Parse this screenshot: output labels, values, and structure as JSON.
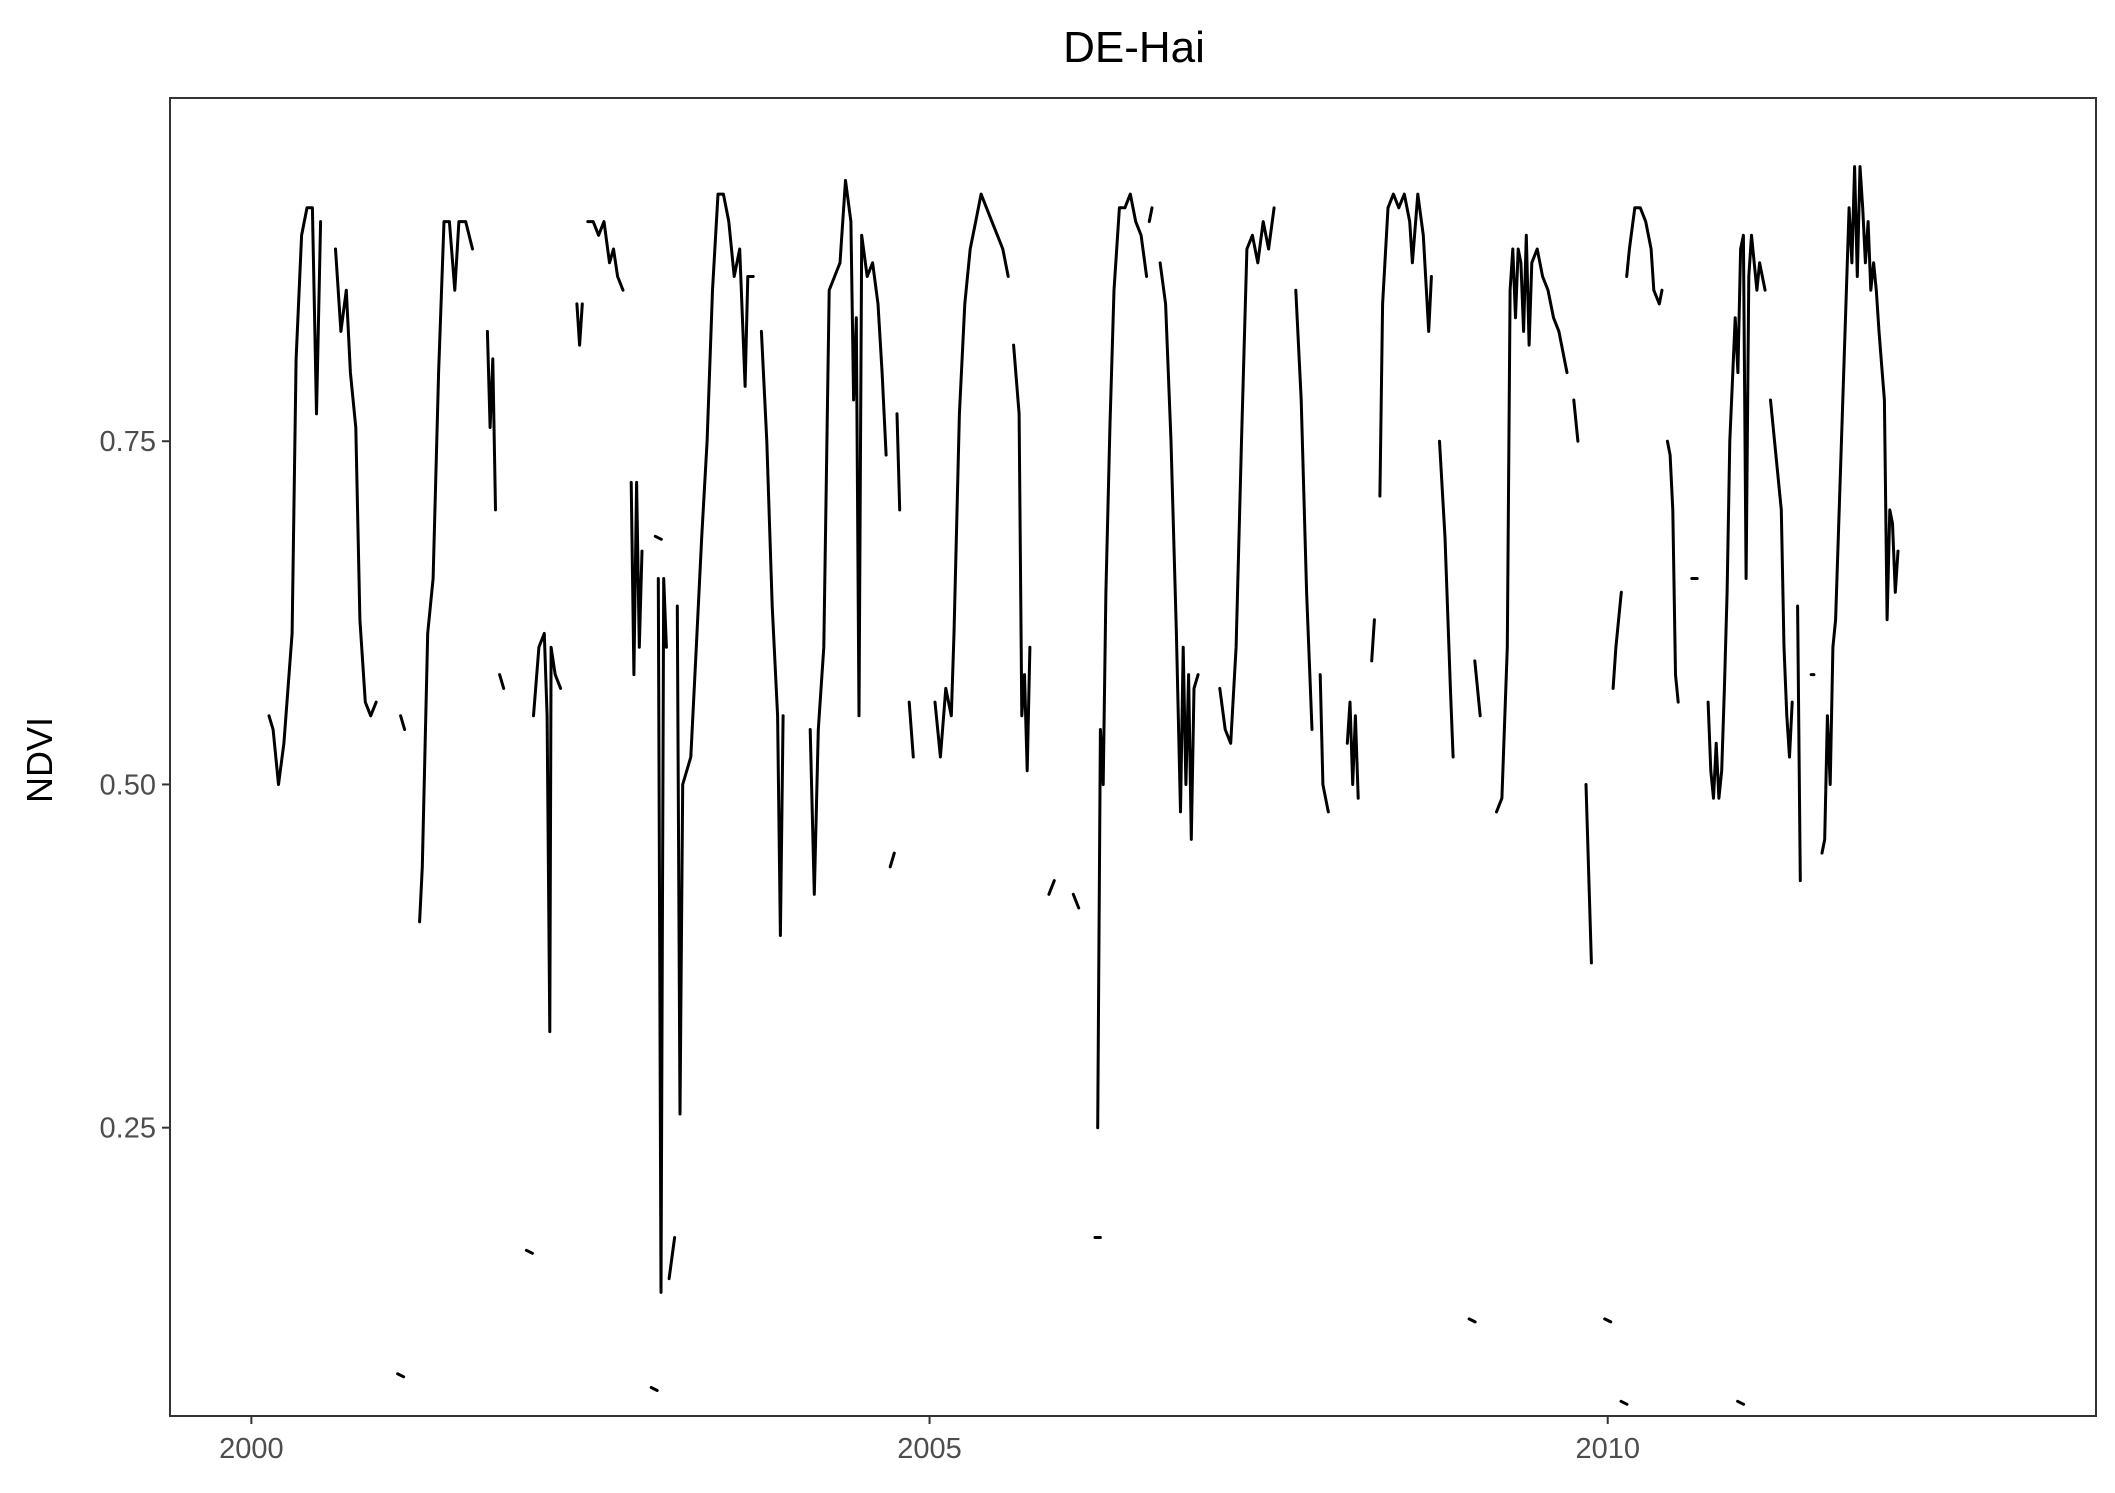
{
  "chart_data": {
    "type": "line",
    "title": "DE-Hai",
    "xlabel": "",
    "ylabel": "NDVI",
    "xlim": [
      1999.4,
      2013.6
    ],
    "ylim": [
      0.04,
      1.0
    ],
    "x_ticks": [
      2000,
      2005,
      2010
    ],
    "x_tick_labels": [
      "2000",
      "2005",
      "2010"
    ],
    "y_ticks": [
      0.25,
      0.5,
      0.75
    ],
    "y_tick_labels": [
      "0.25",
      "0.50",
      "0.75"
    ],
    "grid": false,
    "legend": "none",
    "line_color": "#000000",
    "segments": [
      [
        [
          2000.13,
          0.55
        ],
        [
          2000.16,
          0.54
        ],
        [
          2000.2,
          0.5
        ],
        [
          2000.24,
          0.53
        ],
        [
          2000.3,
          0.61
        ],
        [
          2000.33,
          0.81
        ],
        [
          2000.37,
          0.9
        ],
        [
          2000.41,
          0.92
        ],
        [
          2000.45,
          0.92
        ],
        [
          2000.48,
          0.77
        ],
        [
          2000.51,
          0.91
        ]
      ],
      [
        [
          2000.62,
          0.89
        ],
        [
          2000.66,
          0.83
        ],
        [
          2000.7,
          0.86
        ],
        [
          2000.73,
          0.8
        ],
        [
          2000.77,
          0.76
        ],
        [
          2000.8,
          0.62
        ],
        [
          2000.84,
          0.56
        ],
        [
          2000.88,
          0.55
        ],
        [
          2000.92,
          0.56
        ]
      ],
      [
        [
          2001.1,
          0.55
        ],
        [
          2001.13,
          0.54
        ]
      ],
      [
        [
          2001.24,
          0.4
        ],
        [
          2001.26,
          0.44
        ],
        [
          2001.3,
          0.61
        ],
        [
          2001.34,
          0.65
        ],
        [
          2001.38,
          0.8
        ],
        [
          2001.42,
          0.91
        ],
        [
          2001.46,
          0.91
        ],
        [
          2001.5,
          0.86
        ],
        [
          2001.53,
          0.91
        ],
        [
          2001.58,
          0.91
        ],
        [
          2001.63,
          0.89
        ]
      ],
      [
        [
          2001.74,
          0.83
        ],
        [
          2001.76,
          0.76
        ],
        [
          2001.78,
          0.81
        ],
        [
          2001.8,
          0.7
        ]
      ],
      [
        [
          2001.83,
          0.58
        ],
        [
          2001.86,
          0.57
        ]
      ],
      [
        [
          2002.08,
          0.55
        ],
        [
          2002.12,
          0.6
        ],
        [
          2002.16,
          0.61
        ],
        [
          2002.18,
          0.55
        ],
        [
          2002.2,
          0.32
        ],
        [
          2002.21,
          0.6
        ],
        [
          2002.24,
          0.58
        ],
        [
          2002.28,
          0.57
        ]
      ],
      [
        [
          2002.4,
          0.85
        ],
        [
          2002.42,
          0.82
        ],
        [
          2002.44,
          0.85
        ]
      ],
      [
        [
          2002.48,
          0.91
        ],
        [
          2002.52,
          0.91
        ],
        [
          2002.56,
          0.9
        ],
        [
          2002.6,
          0.91
        ],
        [
          2002.64,
          0.88
        ],
        [
          2002.67,
          0.89
        ],
        [
          2002.7,
          0.87
        ],
        [
          2002.74,
          0.86
        ]
      ],
      [
        [
          2002.8,
          0.72
        ],
        [
          2002.82,
          0.58
        ],
        [
          2002.84,
          0.72
        ],
        [
          2002.86,
          0.6
        ],
        [
          2002.88,
          0.67
        ]
      ],
      [
        [
          2003.0,
          0.65
        ],
        [
          2003.02,
          0.13
        ],
        [
          2003.04,
          0.65
        ],
        [
          2003.06,
          0.6
        ]
      ],
      [
        [
          2003.08,
          0.14
        ],
        [
          2003.12,
          0.17
        ]
      ],
      [
        [
          2003.14,
          0.63
        ],
        [
          2003.16,
          0.26
        ],
        [
          2003.18,
          0.5
        ],
        [
          2003.24,
          0.52
        ],
        [
          2003.28,
          0.6
        ],
        [
          2003.32,
          0.68
        ],
        [
          2003.36,
          0.75
        ],
        [
          2003.4,
          0.86
        ],
        [
          2003.44,
          0.93
        ],
        [
          2003.48,
          0.93
        ],
        [
          2003.52,
          0.91
        ],
        [
          2003.56,
          0.87
        ],
        [
          2003.6,
          0.89
        ],
        [
          2003.64,
          0.79
        ],
        [
          2003.66,
          0.87
        ],
        [
          2003.7,
          0.87
        ]
      ],
      [
        [
          2003.76,
          0.83
        ],
        [
          2003.8,
          0.75
        ],
        [
          2003.84,
          0.63
        ],
        [
          2003.88,
          0.55
        ],
        [
          2003.9,
          0.39
        ],
        [
          2003.92,
          0.55
        ]
      ],
      [
        [
          2004.12,
          0.54
        ],
        [
          2004.15,
          0.42
        ],
        [
          2004.18,
          0.54
        ],
        [
          2004.22,
          0.6
        ],
        [
          2004.26,
          0.86
        ],
        [
          2004.3,
          0.87
        ],
        [
          2004.34,
          0.88
        ],
        [
          2004.38,
          0.94
        ],
        [
          2004.42,
          0.91
        ],
        [
          2004.44,
          0.78
        ],
        [
          2004.46,
          0.84
        ],
        [
          2004.48,
          0.55
        ],
        [
          2004.5,
          0.9
        ],
        [
          2004.54,
          0.87
        ],
        [
          2004.58,
          0.88
        ],
        [
          2004.62,
          0.85
        ],
        [
          2004.65,
          0.8
        ],
        [
          2004.68,
          0.74
        ]
      ],
      [
        [
          2004.71,
          0.44
        ],
        [
          2004.74,
          0.45
        ]
      ],
      [
        [
          2004.76,
          0.77
        ],
        [
          2004.78,
          0.7
        ]
      ],
      [
        [
          2004.85,
          0.56
        ],
        [
          2004.88,
          0.52
        ]
      ],
      [
        [
          2005.04,
          0.56
        ],
        [
          2005.08,
          0.52
        ],
        [
          2005.12,
          0.57
        ],
        [
          2005.16,
          0.55
        ],
        [
          2005.18,
          0.61
        ],
        [
          2005.22,
          0.77
        ],
        [
          2005.26,
          0.85
        ],
        [
          2005.3,
          0.89
        ],
        [
          2005.34,
          0.91
        ],
        [
          2005.38,
          0.93
        ],
        [
          2005.42,
          0.92
        ],
        [
          2005.46,
          0.91
        ],
        [
          2005.5,
          0.9
        ],
        [
          2005.54,
          0.89
        ],
        [
          2005.58,
          0.87
        ]
      ],
      [
        [
          2005.62,
          0.82
        ],
        [
          2005.66,
          0.77
        ],
        [
          2005.68,
          0.55
        ],
        [
          2005.7,
          0.58
        ],
        [
          2005.72,
          0.51
        ],
        [
          2005.74,
          0.6
        ]
      ],
      [
        [
          2005.88,
          0.42
        ],
        [
          2005.92,
          0.43
        ]
      ],
      [
        [
          2006.06,
          0.42
        ],
        [
          2006.1,
          0.41
        ]
      ],
      [
        [
          2006.22,
          0.17
        ],
        [
          2006.26,
          0.17
        ]
      ],
      [
        [
          2006.24,
          0.25
        ],
        [
          2006.26,
          0.54
        ],
        [
          2006.28,
          0.5
        ],
        [
          2006.3,
          0.64
        ],
        [
          2006.33,
          0.76
        ],
        [
          2006.36,
          0.86
        ],
        [
          2006.4,
          0.92
        ],
        [
          2006.44,
          0.92
        ],
        [
          2006.48,
          0.93
        ],
        [
          2006.52,
          0.91
        ],
        [
          2006.56,
          0.9
        ],
        [
          2006.6,
          0.87
        ]
      ],
      [
        [
          2006.62,
          0.91
        ],
        [
          2006.64,
          0.92
        ]
      ],
      [
        [
          2006.7,
          0.88
        ],
        [
          2006.74,
          0.85
        ],
        [
          2006.78,
          0.75
        ],
        [
          2006.82,
          0.61
        ],
        [
          2006.85,
          0.48
        ],
        [
          2006.87,
          0.6
        ],
        [
          2006.89,
          0.5
        ],
        [
          2006.91,
          0.58
        ],
        [
          2006.93,
          0.46
        ],
        [
          2006.95,
          0.57
        ],
        [
          2006.98,
          0.58
        ]
      ],
      [
        [
          2007.14,
          0.57
        ],
        [
          2007.18,
          0.54
        ],
        [
          2007.22,
          0.53
        ],
        [
          2007.26,
          0.6
        ],
        [
          2007.3,
          0.75
        ],
        [
          2007.34,
          0.89
        ],
        [
          2007.38,
          0.9
        ],
        [
          2007.42,
          0.88
        ],
        [
          2007.46,
          0.91
        ],
        [
          2007.5,
          0.89
        ],
        [
          2007.54,
          0.92
        ]
      ],
      [
        [
          2007.7,
          0.86
        ],
        [
          2007.74,
          0.78
        ],
        [
          2007.78,
          0.64
        ],
        [
          2007.82,
          0.54
        ]
      ],
      [
        [
          2007.88,
          0.58
        ],
        [
          2007.9,
          0.5
        ],
        [
          2007.94,
          0.48
        ]
      ],
      [
        [
          2008.08,
          0.53
        ],
        [
          2008.1,
          0.56
        ],
        [
          2008.12,
          0.5
        ],
        [
          2008.14,
          0.55
        ],
        [
          2008.16,
          0.49
        ]
      ],
      [
        [
          2008.26,
          0.59
        ],
        [
          2008.28,
          0.62
        ]
      ],
      [
        [
          2008.32,
          0.71
        ],
        [
          2008.34,
          0.85
        ],
        [
          2008.38,
          0.92
        ],
        [
          2008.42,
          0.93
        ],
        [
          2008.46,
          0.92
        ],
        [
          2008.5,
          0.93
        ],
        [
          2008.54,
          0.91
        ],
        [
          2008.56,
          0.88
        ],
        [
          2008.6,
          0.93
        ],
        [
          2008.64,
          0.9
        ],
        [
          2008.68,
          0.83
        ],
        [
          2008.7,
          0.87
        ]
      ],
      [
        [
          2008.76,
          0.75
        ],
        [
          2008.8,
          0.68
        ],
        [
          2008.84,
          0.57
        ],
        [
          2008.86,
          0.52
        ]
      ],
      [
        [
          2009.02,
          0.59
        ],
        [
          2009.06,
          0.55
        ]
      ],
      [
        [
          2009.18,
          0.48
        ],
        [
          2009.22,
          0.49
        ],
        [
          2009.26,
          0.6
        ],
        [
          2009.28,
          0.86
        ],
        [
          2009.3,
          0.89
        ],
        [
          2009.32,
          0.84
        ],
        [
          2009.34,
          0.89
        ],
        [
          2009.36,
          0.88
        ],
        [
          2009.38,
          0.83
        ],
        [
          2009.4,
          0.9
        ],
        [
          2009.42,
          0.82
        ],
        [
          2009.44,
          0.88
        ],
        [
          2009.48,
          0.89
        ],
        [
          2009.52,
          0.87
        ],
        [
          2009.56,
          0.86
        ],
        [
          2009.6,
          0.84
        ],
        [
          2009.64,
          0.83
        ],
        [
          2009.7,
          0.8
        ]
      ],
      [
        [
          2009.75,
          0.78
        ],
        [
          2009.78,
          0.75
        ]
      ],
      [
        [
          2009.84,
          0.5
        ],
        [
          2009.88,
          0.37
        ]
      ],
      [
        [
          2010.04,
          0.57
        ],
        [
          2010.06,
          0.6
        ],
        [
          2010.08,
          0.62
        ],
        [
          2010.1,
          0.64
        ]
      ],
      [
        [
          2010.14,
          0.87
        ],
        [
          2010.16,
          0.89
        ],
        [
          2010.2,
          0.92
        ],
        [
          2010.24,
          0.92
        ],
        [
          2010.28,
          0.91
        ],
        [
          2010.32,
          0.89
        ],
        [
          2010.34,
          0.86
        ],
        [
          2010.38,
          0.85
        ],
        [
          2010.4,
          0.86
        ]
      ],
      [
        [
          2010.44,
          0.75
        ],
        [
          2010.46,
          0.74
        ],
        [
          2010.48,
          0.7
        ],
        [
          2010.5,
          0.58
        ],
        [
          2010.52,
          0.56
        ]
      ],
      [
        [
          2010.62,
          0.65
        ],
        [
          2010.66,
          0.65
        ]
      ],
      [
        [
          2010.74,
          0.56
        ],
        [
          2010.76,
          0.51
        ],
        [
          2010.78,
          0.49
        ],
        [
          2010.8,
          0.53
        ],
        [
          2010.82,
          0.49
        ],
        [
          2010.84,
          0.51
        ],
        [
          2010.86,
          0.57
        ],
        [
          2010.88,
          0.64
        ],
        [
          2010.9,
          0.75
        ],
        [
          2010.94,
          0.84
        ],
        [
          2010.96,
          0.8
        ],
        [
          2010.98,
          0.89
        ],
        [
          2011.0,
          0.9
        ],
        [
          2011.02,
          0.65
        ],
        [
          2011.04,
          0.87
        ],
        [
          2011.06,
          0.9
        ],
        [
          2011.1,
          0.86
        ],
        [
          2011.12,
          0.88
        ],
        [
          2011.16,
          0.86
        ]
      ],
      [
        [
          2011.2,
          0.78
        ],
        [
          2011.24,
          0.74
        ],
        [
          2011.28,
          0.7
        ],
        [
          2011.3,
          0.6
        ],
        [
          2011.32,
          0.55
        ],
        [
          2011.34,
          0.52
        ],
        [
          2011.36,
          0.56
        ]
      ],
      [
        [
          2011.4,
          0.63
        ],
        [
          2011.42,
          0.43
        ]
      ],
      [
        [
          2011.5,
          0.58
        ],
        [
          2011.52,
          0.58
        ]
      ],
      [
        [
          2011.58,
          0.45
        ],
        [
          2011.6,
          0.46
        ],
        [
          2011.62,
          0.55
        ],
        [
          2011.64,
          0.5
        ],
        [
          2011.66,
          0.6
        ],
        [
          2011.68,
          0.62
        ],
        [
          2011.72,
          0.74
        ],
        [
          2011.76,
          0.86
        ],
        [
          2011.78,
          0.92
        ],
        [
          2011.8,
          0.88
        ],
        [
          2011.82,
          0.95
        ],
        [
          2011.84,
          0.87
        ],
        [
          2011.86,
          0.95
        ],
        [
          2011.88,
          0.92
        ],
        [
          2011.9,
          0.88
        ],
        [
          2011.92,
          0.91
        ],
        [
          2011.94,
          0.86
        ],
        [
          2011.96,
          0.88
        ],
        [
          2011.98,
          0.86
        ],
        [
          2012.0,
          0.83
        ],
        [
          2012.04,
          0.78
        ],
        [
          2012.06,
          0.62
        ],
        [
          2012.08,
          0.7
        ],
        [
          2012.1,
          0.69
        ],
        [
          2012.12,
          0.64
        ],
        [
          2012.14,
          0.67
        ]
      ]
    ],
    "dots": [
      [
        2001.1,
        0.07
      ],
      [
        2002.05,
        0.16
      ],
      [
        2002.97,
        0.06
      ],
      [
        2003.0,
        0.68
      ],
      [
        2009.0,
        0.11
      ],
      [
        2010.0,
        0.11
      ],
      [
        2010.12,
        0.05
      ],
      [
        2010.98,
        0.05
      ]
    ]
  }
}
